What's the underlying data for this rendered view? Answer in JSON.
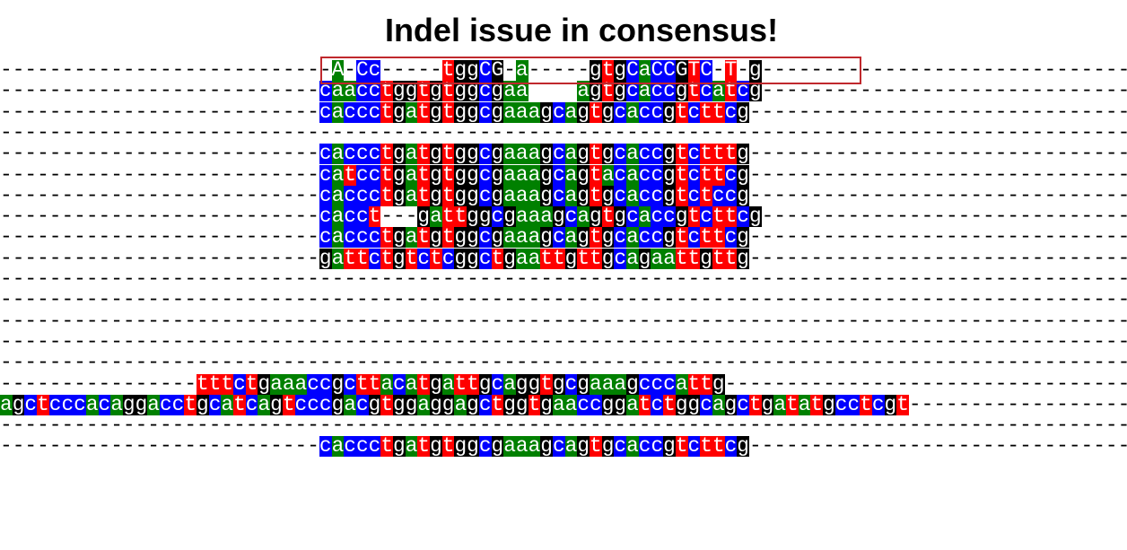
{
  "title": "Indel issue in consensus!",
  "colors": {
    "g": "#000000",
    "c": "#0000ff",
    "t": "#ff0000",
    "a": "#008000",
    "highlight_box": "#c0282d"
  },
  "rows": [
    {
      "name": "consensus-row",
      "start": 26,
      "seq": "-A-Cc-----tggCG-a-----gtgCaCCGTC-T-g"
    },
    {
      "name": "sequence-row",
      "start": 26,
      "seq": "caacctggtgtggcgaa    agtgcaccgtcatcg"
    },
    {
      "name": "sequence-row",
      "start": 26,
      "seq": "caccctgatgtggcgaaagcagtgcaccgtcttcg"
    },
    {
      "name": "sequence-row",
      "start": 0,
      "seq": ""
    },
    {
      "name": "sequence-row",
      "start": 26,
      "seq": "caccctgatgtggcgaaagcagtgcaccgtctttg"
    },
    {
      "name": "sequence-row",
      "start": 26,
      "seq": "catcctgatgtggcgaaagcagtacaccgtcttcg"
    },
    {
      "name": "sequence-row",
      "start": 26,
      "seq": "caccctgatgtggcgaaagcagtgcaccgtctccg"
    },
    {
      "name": "sequence-row",
      "start": 26,
      "seq": "cacct---gattggcgaaagcagtgcaccgtcttcg"
    },
    {
      "name": "sequence-row",
      "start": 26,
      "seq": "caccctgatgtggcgaaagcagtgcaccgtcttcg"
    },
    {
      "name": "sequence-row",
      "start": 26,
      "seq": "gattctgtctcggctgaattgttgcagaattgttg"
    },
    {
      "name": "sequence-row",
      "start": 0,
      "seq": ""
    },
    {
      "name": "sequence-row",
      "start": 0,
      "seq": ""
    },
    {
      "name": "sequence-row",
      "start": 0,
      "seq": ""
    },
    {
      "name": "sequence-row",
      "start": 0,
      "seq": ""
    },
    {
      "name": "sequence-row",
      "start": 0,
      "seq": ""
    },
    {
      "name": "sequence-row",
      "start": 16,
      "seq": "tttctgaaaccgcttacatgattgcaggtgcgaaagcccattg"
    },
    {
      "name": "sequence-row",
      "start": 0,
      "seq": "agctcccacaggacctgcatcagtcccgacgtggaggagctggtgaaccggatctggcagctgatatgcctcgt"
    },
    {
      "name": "sequence-row",
      "start": 0,
      "seq": ""
    },
    {
      "name": "sequence-row",
      "start": 26,
      "seq": "caccctgatgtggcgaaagcagtgcaccgtcttcg"
    }
  ]
}
